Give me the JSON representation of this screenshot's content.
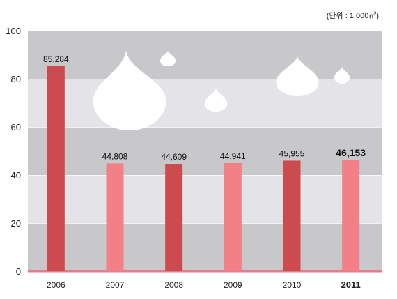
{
  "chart_data": {
    "type": "bar",
    "unit_label": "(단위 : 1,000㎥)",
    "categories": [
      "2006",
      "2007",
      "2008",
      "2009",
      "2010",
      "2011"
    ],
    "values": [
      85.284,
      44.808,
      44.609,
      44.941,
      45.955,
      46.153
    ],
    "value_labels": [
      "85,284",
      "44,808",
      "44,609",
      "44,941",
      "45,955",
      "46,153"
    ],
    "yticks": [
      0,
      20,
      40,
      60,
      80,
      100
    ],
    "ylim": [
      0,
      100
    ],
    "grid": true,
    "bar_colors": [
      "#cc4b4e",
      "#f28086",
      "#cc4b4e",
      "#f28086",
      "#cc4b4e",
      "#f28086"
    ],
    "band_colors": [
      "#c8c8ca",
      "#e3e3e8"
    ],
    "baseline_color": "#e87a8a",
    "highlight_category": "2011"
  }
}
